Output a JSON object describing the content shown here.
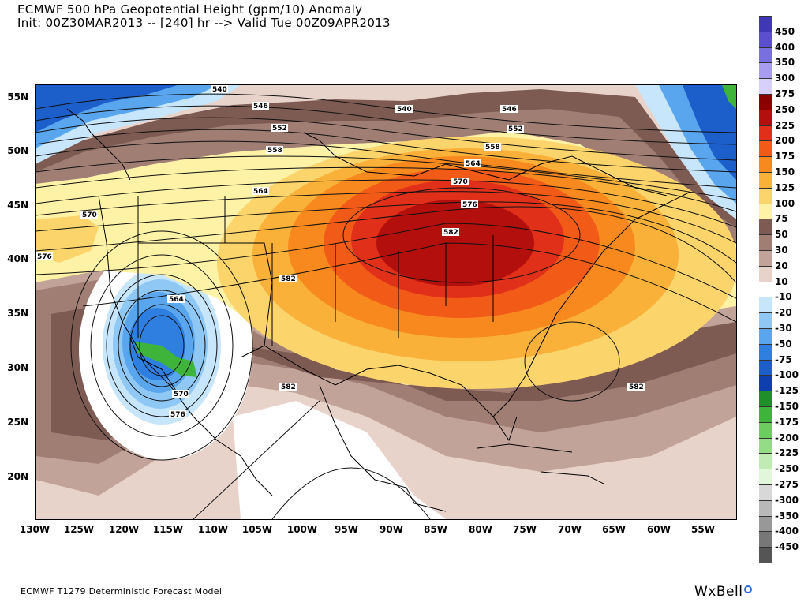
{
  "title": {
    "line1": "ECMWF 500 hPa Geopotential Height (gpm/10) Anomaly",
    "line2": "Init: 00Z30MAR2013 -- [240] hr --> Valid Tue 00Z09APR2013"
  },
  "axes": {
    "lat_ticks": [
      "55N",
      "50N",
      "45N",
      "40N",
      "35N",
      "30N",
      "25N",
      "20N"
    ],
    "lon_ticks": [
      "130W",
      "125W",
      "120W",
      "115W",
      "110W",
      "105W",
      "100W",
      "95W",
      "90W",
      "85W",
      "80W",
      "75W",
      "70W",
      "65W",
      "60W",
      "55W"
    ]
  },
  "colorbar": {
    "levels": [
      {
        "label": "450",
        "color": "#3f37b5"
      },
      {
        "label": "400",
        "color": "#5b4fd0"
      },
      {
        "label": "350",
        "color": "#7a6fe0"
      },
      {
        "label": "300",
        "color": "#a79cf0"
      },
      {
        "label": "275",
        "color": "#d6d0fa"
      },
      {
        "label": "250",
        "color": "#8b0000"
      },
      {
        "label": "225",
        "color": "#b30f0c"
      },
      {
        "label": "200",
        "color": "#e0301a"
      },
      {
        "label": "175",
        "color": "#f25a18"
      },
      {
        "label": "150",
        "color": "#f7891e"
      },
      {
        "label": "125",
        "color": "#f9b13a"
      },
      {
        "label": "100",
        "color": "#fbd46c"
      },
      {
        "label": "75",
        "color": "#fdf2a6"
      },
      {
        "label": "50",
        "color": "#7d5a52"
      },
      {
        "label": "30",
        "color": "#a07e74"
      },
      {
        "label": "20",
        "color": "#c2a399"
      },
      {
        "label": "10",
        "color": "#e8d3cb"
      },
      {
        "label": "-10",
        "color": "#ffffff"
      },
      {
        "label": "-20",
        "color": "#c8e6fb"
      },
      {
        "label": "-30",
        "color": "#8fc8f5"
      },
      {
        "label": "-50",
        "color": "#5aa6ee"
      },
      {
        "label": "-75",
        "color": "#2f7fe0"
      },
      {
        "label": "-100",
        "color": "#1c5fcb"
      },
      {
        "label": "-125",
        "color": "#0f3fae"
      },
      {
        "label": "-150",
        "color": "#1f8f2a"
      },
      {
        "label": "-175",
        "color": "#3fb43a"
      },
      {
        "label": "-200",
        "color": "#6ccc5e"
      },
      {
        "label": "-225",
        "color": "#95dc86"
      },
      {
        "label": "-250",
        "color": "#c0ecb4"
      },
      {
        "label": "-275",
        "color": "#e2f6dc"
      },
      {
        "label": "-300",
        "color": "#d8d8d8"
      },
      {
        "label": "-350",
        "color": "#b8b8b8"
      },
      {
        "label": "-400",
        "color": "#989898"
      },
      {
        "label": "-450",
        "color": "#777777"
      },
      {
        "label": "",
        "color": "#555555"
      }
    ]
  },
  "contours": {
    "labels": [
      "540",
      "546",
      "552",
      "558",
      "564",
      "570",
      "576",
      "582",
      "546",
      "552",
      "558",
      "564",
      "570",
      "576",
      "582",
      "564",
      "570",
      "576",
      "576",
      "582",
      "540",
      "570",
      "576",
      "582",
      "576"
    ]
  },
  "footer": {
    "model": "ECMWF T1279 Deterministic Forecast Model",
    "brand": "WxBell"
  },
  "colors": {
    "frame": "#000000",
    "contour": "#111111",
    "coast": "#000000"
  }
}
